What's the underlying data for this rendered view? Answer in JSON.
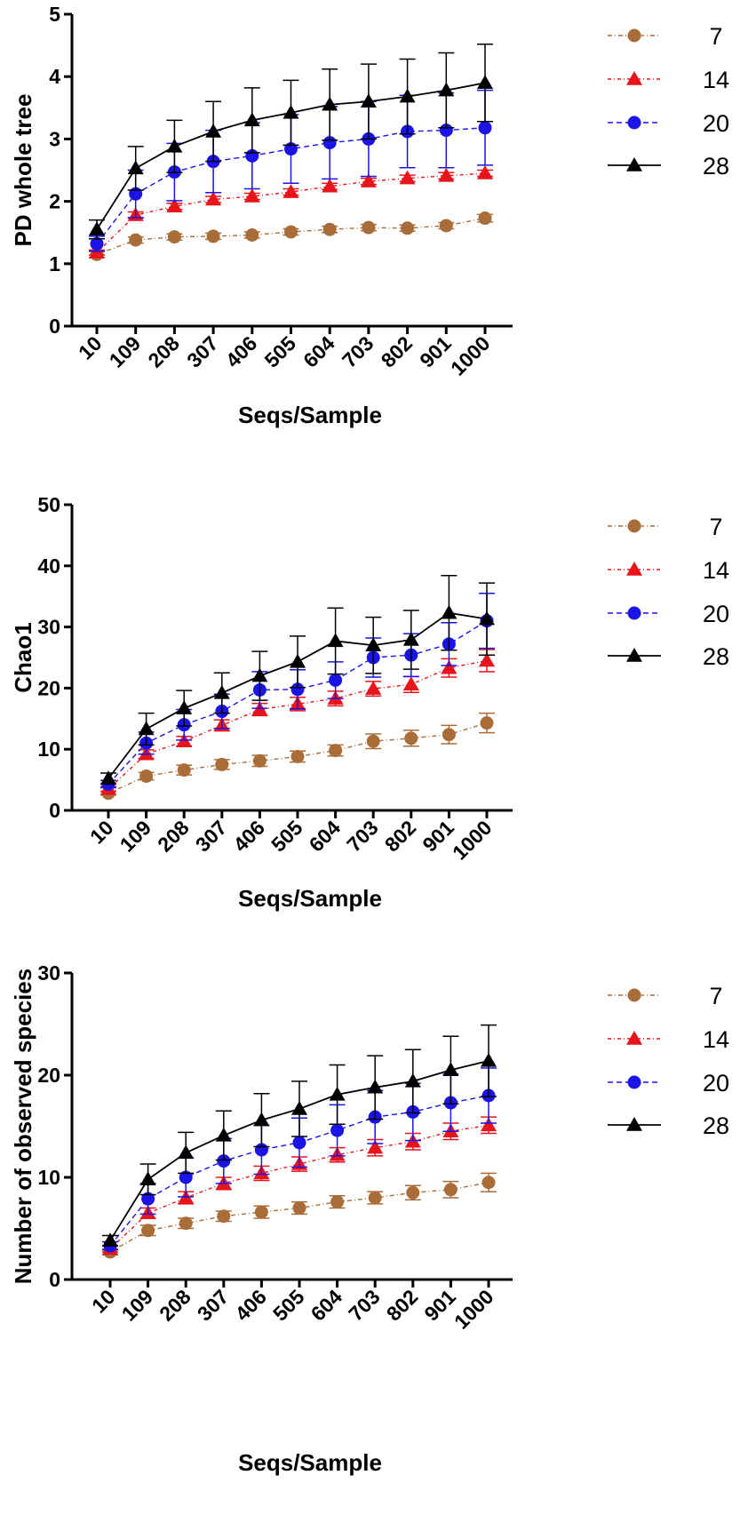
{
  "chart_data": [
    {
      "type": "line",
      "categories": [
        "10",
        "109",
        "208",
        "307",
        "406",
        "505",
        "604",
        "703",
        "802",
        "901",
        "1000"
      ],
      "xlabel": "Seqs/Sample",
      "ylabel": "PD whole tree",
      "ylim": [
        0,
        5
      ],
      "yticks": [
        0,
        1,
        2,
        3,
        4,
        5
      ],
      "error_bars": "sd",
      "series": [
        {
          "name": "7",
          "color": "#A96D3A",
          "marker": "circle",
          "values": [
            1.15,
            1.38,
            1.43,
            1.44,
            1.46,
            1.51,
            1.55,
            1.58,
            1.57,
            1.61,
            1.73
          ],
          "errors": [
            0.05,
            0.05,
            0.05,
            0.05,
            0.05,
            0.05,
            0.05,
            0.05,
            0.05,
            0.05,
            0.06
          ]
        },
        {
          "name": "14",
          "color": "#E8141C",
          "marker": "triangle",
          "values": [
            1.18,
            1.78,
            1.92,
            2.03,
            2.08,
            2.15,
            2.24,
            2.32,
            2.37,
            2.41,
            2.45
          ],
          "errors": [
            0.04,
            0.05,
            0.05,
            0.05,
            0.05,
            0.05,
            0.05,
            0.05,
            0.05,
            0.05,
            0.05
          ]
        },
        {
          "name": "20",
          "color": "#1A14E6",
          "marker": "circle",
          "values": [
            1.32,
            2.12,
            2.47,
            2.64,
            2.73,
            2.84,
            2.94,
            3.0,
            3.12,
            3.14,
            3.18
          ],
          "errors": [
            0.12,
            0.38,
            0.46,
            0.5,
            0.53,
            0.55,
            0.58,
            0.6,
            0.58,
            0.6,
            0.6
          ]
        },
        {
          "name": "28",
          "color": "#000000",
          "marker": "triangle",
          "values": [
            1.55,
            2.53,
            2.88,
            3.12,
            3.3,
            3.42,
            3.55,
            3.6,
            3.68,
            3.78,
            3.9
          ],
          "errors": [
            0.15,
            0.35,
            0.42,
            0.48,
            0.52,
            0.52,
            0.57,
            0.6,
            0.6,
            0.6,
            0.62
          ]
        }
      ]
    },
    {
      "type": "line",
      "categories": [
        "10",
        "109",
        "208",
        "307",
        "406",
        "505",
        "604",
        "703",
        "802",
        "901",
        "1000"
      ],
      "xlabel": "Seqs/Sample",
      "ylabel": "Chao1",
      "ylim": [
        0,
        50
      ],
      "yticks": [
        0,
        10,
        20,
        30,
        40,
        50
      ],
      "error_bars": "sd",
      "series": [
        {
          "name": "7",
          "color": "#A96D3A",
          "marker": "circle",
          "values": [
            2.8,
            5.6,
            6.6,
            7.5,
            8.1,
            8.8,
            9.8,
            11.3,
            11.8,
            12.4,
            14.3
          ],
          "errors": [
            0.3,
            0.6,
            0.8,
            0.8,
            0.9,
            0.9,
            0.9,
            1.2,
            1.3,
            1.5,
            1.6
          ]
        },
        {
          "name": "14",
          "color": "#E8141C",
          "marker": "triangle",
          "values": [
            3.5,
            9.2,
            11.3,
            13.9,
            16.5,
            17.4,
            18.3,
            19.9,
            20.6,
            23.3,
            24.5
          ],
          "errors": [
            0.4,
            0.7,
            0.8,
            0.9,
            1.0,
            1.1,
            1.2,
            1.2,
            1.3,
            1.5,
            1.8
          ]
        },
        {
          "name": "20",
          "color": "#1A14E6",
          "marker": "circle",
          "values": [
            4.3,
            11.0,
            14.0,
            16.2,
            19.7,
            19.8,
            21.3,
            25.0,
            25.4,
            27.2,
            31.0
          ],
          "errors": [
            0.6,
            1.8,
            2.5,
            2.8,
            3.0,
            3.2,
            3.0,
            3.2,
            3.5,
            3.5,
            4.5
          ]
        },
        {
          "name": "28",
          "color": "#000000",
          "marker": "triangle",
          "values": [
            5.2,
            13.3,
            16.7,
            19.2,
            22.0,
            24.3,
            27.7,
            27.0,
            27.9,
            32.3,
            31.3
          ],
          "errors": [
            0.9,
            2.6,
            2.9,
            3.3,
            4.0,
            4.2,
            5.4,
            4.6,
            4.8,
            6.1,
            5.9
          ]
        }
      ]
    },
    {
      "type": "line",
      "categories": [
        "10",
        "109",
        "208",
        "307",
        "406",
        "505",
        "604",
        "703",
        "802",
        "901",
        "1000"
      ],
      "xlabel": "Seqs/Sample",
      "ylabel": "Number of observed species",
      "ylim": [
        0,
        30
      ],
      "yticks": [
        0,
        10,
        20,
        30
      ],
      "error_bars": "sd",
      "series": [
        {
          "name": "7",
          "color": "#A96D3A",
          "marker": "circle",
          "values": [
            2.7,
            4.8,
            5.5,
            6.2,
            6.6,
            7.0,
            7.6,
            8.0,
            8.5,
            8.8,
            9.5
          ],
          "errors": [
            0.3,
            0.5,
            0.5,
            0.5,
            0.6,
            0.6,
            0.6,
            0.6,
            0.7,
            0.8,
            0.9
          ]
        },
        {
          "name": "14",
          "color": "#E8141C",
          "marker": "triangle",
          "values": [
            3.0,
            6.5,
            8.0,
            9.4,
            10.4,
            11.3,
            12.2,
            12.9,
            13.5,
            14.5,
            15.1
          ],
          "errors": [
            0.3,
            0.5,
            0.6,
            0.6,
            0.7,
            0.7,
            0.7,
            0.8,
            0.8,
            0.8,
            0.8
          ]
        },
        {
          "name": "20",
          "color": "#1A14E6",
          "marker": "circle",
          "values": [
            3.3,
            7.9,
            10.0,
            11.6,
            12.7,
            13.4,
            14.6,
            15.9,
            16.4,
            17.3,
            18.0
          ],
          "errors": [
            0.4,
            1.5,
            1.9,
            2.2,
            2.4,
            2.4,
            2.5,
            2.6,
            2.8,
            2.8,
            2.7
          ]
        },
        {
          "name": "28",
          "color": "#000000",
          "marker": "triangle",
          "values": [
            3.8,
            9.8,
            12.4,
            14.1,
            15.6,
            16.7,
            18.1,
            18.8,
            19.4,
            20.5,
            21.4
          ],
          "errors": [
            0.5,
            1.5,
            2.0,
            2.4,
            2.6,
            2.7,
            2.9,
            3.1,
            3.1,
            3.3,
            3.5
          ]
        }
      ]
    }
  ]
}
